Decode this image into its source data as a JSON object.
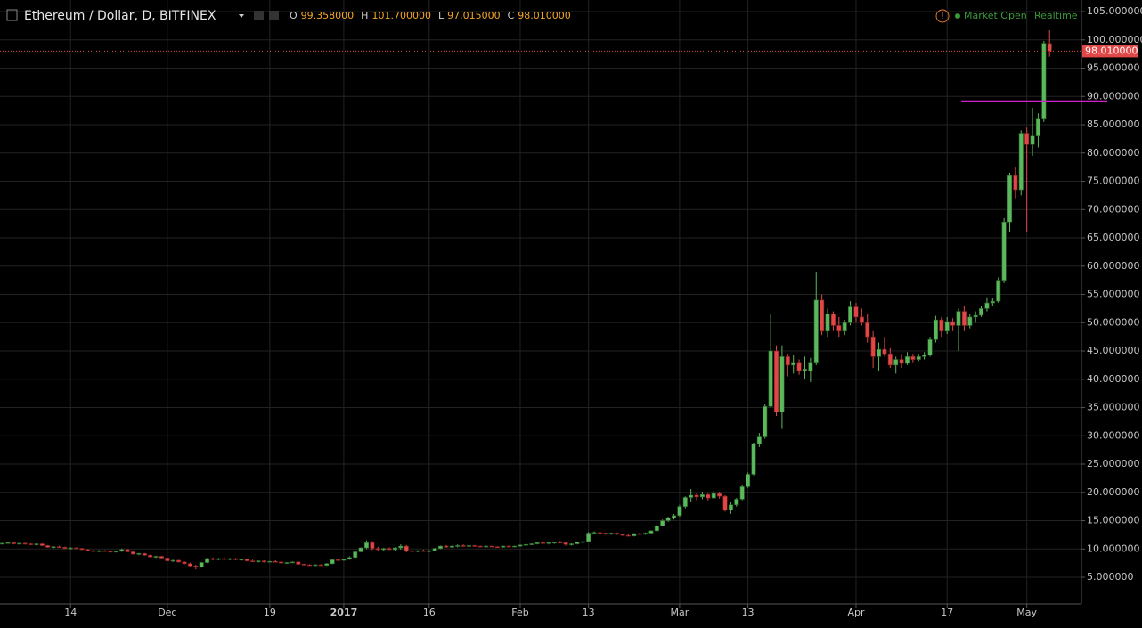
{
  "chart_data": {
    "type": "candlestick",
    "title": "Ethereum / Dollar, D, BITFINEX",
    "status": "Market Open",
    "feed": "Realtime",
    "ohlc_keys": [
      "O",
      "H",
      "L",
      "C"
    ],
    "last_labels": [
      "99.358000",
      "101.700000",
      "97.015000",
      "98.010000"
    ],
    "up_color": "#5cb85c",
    "down_color": "#e04848",
    "grid": true,
    "horizontal_line": 89.2,
    "horizontal_line_color": "#d020d0",
    "xlim": [
      -0.4,
      189.6
    ],
    "xticks": [
      {
        "value": 12,
        "label": "14"
      },
      {
        "value": 29,
        "label": "Dec"
      },
      {
        "value": 47,
        "label": "19"
      },
      {
        "value": 60,
        "label": "2017"
      },
      {
        "value": 75,
        "label": "16"
      },
      {
        "value": 91,
        "label": "Feb"
      },
      {
        "value": 103,
        "label": "13"
      },
      {
        "value": 119,
        "label": "Mar"
      },
      {
        "value": 131,
        "label": "13"
      },
      {
        "value": 150,
        "label": "Apr"
      },
      {
        "value": 166,
        "label": "17"
      },
      {
        "value": 180,
        "label": "May"
      }
    ],
    "ylim": [
      0.28,
      107.05
    ],
    "yticks": [
      {
        "value": 5,
        "label": "5.000000"
      },
      {
        "value": 10,
        "label": "10.000000"
      },
      {
        "value": 15,
        "label": "15.000000"
      },
      {
        "value": 20,
        "label": "20.000000"
      },
      {
        "value": 25,
        "label": "25.000000"
      },
      {
        "value": 30,
        "label": "30.000000"
      },
      {
        "value": 35,
        "label": "35.000000"
      },
      {
        "value": 40,
        "label": "40.000000"
      },
      {
        "value": 45,
        "label": "45.000000"
      },
      {
        "value": 50,
        "label": "50.000000"
      },
      {
        "value": 55,
        "label": "55.000000"
      },
      {
        "value": 60,
        "label": "60.000000"
      },
      {
        "value": 65,
        "label": "65.000000"
      },
      {
        "value": 70,
        "label": "70.000000"
      },
      {
        "value": 75,
        "label": "75.000000"
      },
      {
        "value": 80,
        "label": "80.000000"
      },
      {
        "value": 85,
        "label": "85.000000"
      },
      {
        "value": 90,
        "label": "90.000000"
      },
      {
        "value": 95,
        "label": "95.000000"
      },
      {
        "value": 100,
        "label": "100.000000"
      },
      {
        "value": 105,
        "label": "105.000000"
      }
    ],
    "ohlc": [
      [
        10.9,
        11.1,
        10.8,
        11.0
      ],
      [
        11.0,
        11.2,
        10.9,
        11.1
      ],
      [
        11.1,
        11.2,
        10.8,
        10.9
      ],
      [
        10.9,
        11.1,
        10.8,
        11.0
      ],
      [
        11.0,
        11.1,
        10.8,
        10.9
      ],
      [
        10.9,
        11.0,
        10.7,
        10.8
      ],
      [
        10.8,
        11.0,
        10.6,
        10.9
      ],
      [
        10.9,
        11.0,
        10.5,
        10.6
      ],
      [
        10.6,
        10.7,
        10.2,
        10.3
      ],
      [
        10.3,
        10.5,
        10.1,
        10.4
      ],
      [
        10.4,
        10.6,
        10.2,
        10.3
      ],
      [
        10.3,
        10.4,
        10.0,
        10.1
      ],
      [
        10.1,
        10.3,
        9.9,
        10.2
      ],
      [
        10.2,
        10.3,
        10.0,
        10.1
      ],
      [
        10.1,
        10.2,
        9.8,
        9.9
      ],
      [
        9.9,
        10.0,
        9.6,
        9.7
      ],
      [
        9.7,
        9.8,
        9.5,
        9.6
      ],
      [
        9.6,
        9.8,
        9.4,
        9.7
      ],
      [
        9.7,
        9.8,
        9.5,
        9.6
      ],
      [
        9.6,
        9.7,
        9.4,
        9.5
      ],
      [
        9.5,
        9.7,
        9.4,
        9.6
      ],
      [
        9.6,
        10.1,
        9.5,
        9.9
      ],
      [
        9.9,
        10.0,
        9.4,
        9.5
      ],
      [
        9.5,
        9.6,
        9.0,
        9.1
      ],
      [
        9.1,
        9.3,
        8.9,
        9.2
      ],
      [
        9.2,
        9.3,
        8.8,
        8.9
      ],
      [
        8.9,
        9.0,
        8.5,
        8.6
      ],
      [
        8.6,
        8.8,
        8.4,
        8.7
      ],
      [
        8.7,
        8.8,
        8.3,
        8.4
      ],
      [
        8.4,
        8.5,
        7.8,
        7.9
      ],
      [
        7.9,
        8.1,
        7.7,
        8.0
      ],
      [
        8.0,
        8.1,
        7.6,
        7.7
      ],
      [
        7.7,
        7.8,
        7.3,
        7.4
      ],
      [
        7.4,
        7.6,
        6.9,
        7.0
      ],
      [
        7.0,
        7.2,
        6.4,
        6.8
      ],
      [
        6.8,
        7.7,
        6.7,
        7.6
      ],
      [
        7.6,
        8.4,
        7.5,
        8.3
      ],
      [
        8.3,
        8.5,
        8.0,
        8.2
      ],
      [
        8.2,
        8.4,
        8.0,
        8.3
      ],
      [
        8.3,
        8.5,
        8.1,
        8.2
      ],
      [
        8.2,
        8.4,
        8.0,
        8.3
      ],
      [
        8.3,
        8.4,
        8.0,
        8.1
      ],
      [
        8.1,
        8.3,
        7.9,
        8.2
      ],
      [
        8.2,
        8.3,
        7.8,
        7.9
      ],
      [
        7.9,
        8.1,
        7.7,
        7.8
      ],
      [
        7.8,
        8.0,
        7.6,
        7.9
      ],
      [
        7.9,
        8.0,
        7.6,
        7.7
      ],
      [
        7.7,
        7.9,
        7.6,
        7.8
      ],
      [
        7.8,
        8.0,
        7.6,
        7.7
      ],
      [
        7.7,
        7.8,
        7.4,
        7.5
      ],
      [
        7.5,
        7.7,
        7.4,
        7.6
      ],
      [
        7.6,
        7.8,
        7.5,
        7.7
      ],
      [
        7.7,
        7.8,
        7.2,
        7.3
      ],
      [
        7.3,
        7.4,
        7.1,
        7.2
      ],
      [
        7.2,
        7.3,
        7.0,
        7.1
      ],
      [
        7.1,
        7.3,
        7.0,
        7.2
      ],
      [
        7.2,
        7.3,
        7.0,
        7.1
      ],
      [
        7.1,
        7.5,
        7.0,
        7.4
      ],
      [
        7.4,
        8.3,
        7.3,
        8.1
      ],
      [
        8.1,
        8.3,
        7.9,
        8.0
      ],
      [
        8.0,
        8.3,
        7.9,
        8.2
      ],
      [
        8.2,
        8.7,
        8.1,
        8.5
      ],
      [
        8.5,
        9.6,
        8.4,
        9.5
      ],
      [
        9.5,
        10.3,
        9.4,
        10.2
      ],
      [
        10.2,
        11.5,
        10.0,
        11.1
      ],
      [
        11.1,
        11.4,
        9.8,
        10.1
      ],
      [
        10.1,
        10.4,
        9.7,
        9.9
      ],
      [
        9.9,
        10.2,
        9.6,
        10.1
      ],
      [
        10.1,
        10.3,
        9.8,
        9.9
      ],
      [
        9.9,
        10.3,
        9.7,
        10.2
      ],
      [
        10.2,
        10.8,
        9.9,
        10.5
      ],
      [
        10.5,
        10.7,
        9.4,
        9.7
      ],
      [
        9.7,
        9.9,
        9.4,
        9.6
      ],
      [
        9.6,
        9.8,
        9.4,
        9.7
      ],
      [
        9.7,
        9.9,
        9.5,
        9.6
      ],
      [
        9.6,
        9.8,
        9.4,
        9.7
      ],
      [
        9.7,
        10.2,
        9.6,
        10.1
      ],
      [
        10.1,
        10.6,
        10.0,
        10.5
      ],
      [
        10.5,
        10.7,
        10.2,
        10.3
      ],
      [
        10.3,
        10.6,
        10.2,
        10.5
      ],
      [
        10.5,
        10.8,
        10.3,
        10.6
      ],
      [
        10.6,
        10.8,
        10.4,
        10.5
      ],
      [
        10.5,
        10.7,
        10.3,
        10.6
      ],
      [
        10.6,
        10.7,
        10.4,
        10.5
      ],
      [
        10.5,
        10.6,
        10.3,
        10.4
      ],
      [
        10.4,
        10.6,
        10.3,
        10.5
      ],
      [
        10.5,
        10.6,
        10.3,
        10.4
      ],
      [
        10.4,
        10.5,
        10.2,
        10.3
      ],
      [
        10.3,
        10.6,
        10.2,
        10.5
      ],
      [
        10.5,
        10.6,
        10.3,
        10.4
      ],
      [
        10.4,
        10.6,
        10.3,
        10.5
      ],
      [
        10.5,
        10.8,
        10.4,
        10.7
      ],
      [
        10.7,
        10.9,
        10.6,
        10.8
      ],
      [
        10.8,
        11.0,
        10.7,
        10.9
      ],
      [
        10.9,
        11.2,
        10.8,
        11.1
      ],
      [
        11.1,
        11.3,
        10.9,
        11.0
      ],
      [
        11.0,
        11.2,
        10.8,
        11.1
      ],
      [
        11.1,
        11.3,
        10.9,
        11.2
      ],
      [
        11.2,
        11.4,
        11.0,
        11.1
      ],
      [
        11.1,
        11.2,
        10.6,
        10.8
      ],
      [
        10.8,
        11.0,
        10.6,
        10.9
      ],
      [
        10.9,
        11.3,
        10.8,
        11.2
      ],
      [
        11.2,
        11.4,
        11.0,
        11.3
      ],
      [
        11.3,
        13.0,
        11.2,
        12.8
      ],
      [
        12.8,
        13.1,
        12.6,
        12.9
      ],
      [
        12.9,
        13.0,
        12.6,
        12.8
      ],
      [
        12.8,
        12.9,
        12.5,
        12.7
      ],
      [
        12.7,
        12.9,
        12.5,
        12.8
      ],
      [
        12.8,
        12.9,
        12.5,
        12.6
      ],
      [
        12.6,
        12.7,
        12.3,
        12.4
      ],
      [
        12.4,
        12.6,
        12.2,
        12.3
      ],
      [
        12.3,
        12.8,
        12.2,
        12.7
      ],
      [
        12.7,
        12.9,
        12.5,
        12.6
      ],
      [
        12.6,
        12.9,
        12.5,
        12.8
      ],
      [
        12.8,
        13.3,
        12.7,
        13.2
      ],
      [
        13.2,
        14.3,
        13.1,
        14.1
      ],
      [
        14.1,
        15.2,
        14.0,
        15.0
      ],
      [
        15.0,
        15.7,
        14.8,
        15.5
      ],
      [
        15.5,
        16.2,
        15.2,
        15.9
      ],
      [
        15.9,
        17.8,
        15.7,
        17.5
      ],
      [
        17.5,
        19.3,
        17.2,
        19.1
      ],
      [
        19.1,
        20.6,
        18.3,
        19.5
      ],
      [
        19.5,
        20.0,
        18.6,
        19.2
      ],
      [
        19.2,
        20.1,
        18.8,
        19.6
      ],
      [
        19.6,
        19.9,
        18.6,
        19.0
      ],
      [
        19.0,
        20.3,
        18.9,
        19.8
      ],
      [
        19.8,
        20.1,
        18.9,
        19.3
      ],
      [
        19.3,
        19.5,
        16.6,
        16.9
      ],
      [
        16.9,
        18.3,
        16.2,
        17.8
      ],
      [
        17.8,
        19.0,
        17.5,
        18.8
      ],
      [
        18.8,
        21.3,
        18.6,
        21.0
      ],
      [
        21.0,
        23.5,
        20.8,
        23.2
      ],
      [
        23.2,
        28.8,
        23.0,
        28.6
      ],
      [
        28.6,
        30.5,
        28.0,
        29.8
      ],
      [
        29.8,
        35.6,
        29.5,
        35.2
      ],
      [
        35.2,
        51.6,
        35.0,
        45.0
      ],
      [
        45.0,
        46.0,
        33.5,
        34.2
      ],
      [
        34.2,
        46.0,
        31.2,
        44.0
      ],
      [
        44.0,
        44.5,
        40.5,
        42.5
      ],
      [
        42.5,
        44.3,
        41.0,
        43.0
      ],
      [
        43.0,
        43.5,
        40.8,
        41.5
      ],
      [
        41.5,
        44.0,
        40.0,
        41.8
      ],
      [
        41.5,
        43.8,
        39.5,
        43.0
      ],
      [
        43.0,
        59.0,
        42.5,
        54.0
      ],
      [
        54.0,
        55.0,
        47.8,
        48.5
      ],
      [
        48.5,
        52.5,
        47.5,
        51.5
      ],
      [
        51.5,
        52.0,
        48.5,
        49.5
      ],
      [
        49.5,
        51.0,
        47.5,
        48.5
      ],
      [
        48.5,
        50.5,
        47.8,
        50.0
      ],
      [
        50.0,
        53.8,
        49.5,
        52.8
      ],
      [
        52.8,
        53.5,
        50.0,
        51.0
      ],
      [
        51.0,
        52.5,
        49.5,
        50.0
      ],
      [
        50.0,
        51.5,
        46.5,
        47.5
      ],
      [
        47.5,
        48.5,
        42.0,
        44.0
      ],
      [
        44.0,
        46.5,
        41.5,
        45.3
      ],
      [
        45.3,
        47.5,
        44.0,
        44.5
      ],
      [
        44.5,
        45.5,
        42.0,
        42.5
      ],
      [
        42.5,
        44.0,
        41.0,
        43.5
      ],
      [
        43.5,
        44.5,
        42.0,
        42.8
      ],
      [
        42.8,
        44.8,
        42.5,
        44.0
      ],
      [
        44.0,
        44.5,
        43.0,
        43.5
      ],
      [
        43.5,
        44.5,
        43.2,
        44.0
      ],
      [
        44.0,
        44.8,
        43.5,
        44.3
      ],
      [
        44.3,
        47.5,
        44.0,
        47.0
      ],
      [
        47.0,
        51.2,
        46.5,
        50.5
      ],
      [
        50.5,
        51.0,
        47.5,
        48.5
      ],
      [
        48.5,
        51.0,
        48.0,
        50.2
      ],
      [
        50.2,
        50.8,
        48.5,
        49.5
      ],
      [
        49.5,
        52.5,
        45.0,
        52.0
      ],
      [
        52.0,
        53.0,
        48.5,
        49.5
      ],
      [
        49.5,
        51.5,
        49.0,
        51.0
      ],
      [
        51.0,
        52.0,
        50.0,
        51.3
      ],
      [
        51.3,
        53.0,
        51.0,
        52.5
      ],
      [
        52.5,
        54.5,
        52.0,
        53.5
      ],
      [
        53.5,
        54.3,
        53.0,
        53.8
      ],
      [
        53.8,
        58.0,
        53.5,
        57.5
      ],
      [
        57.5,
        68.5,
        57.0,
        67.8
      ],
      [
        67.8,
        76.5,
        66.0,
        76.0
      ],
      [
        76.0,
        77.5,
        72.0,
        73.5
      ],
      [
        73.5,
        84.0,
        72.5,
        83.5
      ],
      [
        83.5,
        84.5,
        66.0,
        81.5
      ],
      [
        81.5,
        88.0,
        79.5,
        83.0
      ],
      [
        83.0,
        87.0,
        81.0,
        86.0
      ],
      [
        86.0,
        99.8,
        85.5,
        99.4
      ],
      [
        99.358,
        101.7,
        97.015,
        98.01
      ]
    ]
  }
}
